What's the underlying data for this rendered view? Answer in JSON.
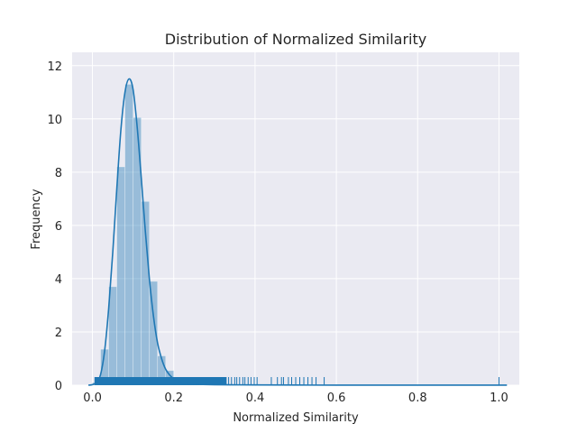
{
  "chart_data": {
    "type": "histogram",
    "title": "Distribution of Normalized Similarity",
    "xlabel": "Normalized Similarity",
    "ylabel": "Frequency",
    "xlim": [
      -0.05,
      1.05
    ],
    "ylim": [
      0,
      12.5
    ],
    "x_ticks": [
      0.0,
      0.2,
      0.4,
      0.6,
      0.8,
      1.0
    ],
    "x_tick_labels": [
      "0.0",
      "0.2",
      "0.4",
      "0.6",
      "0.8",
      "1.0"
    ],
    "y_ticks": [
      0,
      2,
      4,
      6,
      8,
      10,
      12
    ],
    "y_tick_labels": [
      "0",
      "2",
      "4",
      "6",
      "8",
      "10",
      "12"
    ],
    "grid": true,
    "colors": {
      "series": "#1f77b4",
      "background": "#eaeaf2",
      "grid": "#ffffff"
    },
    "bins": {
      "edges": [
        0.0,
        0.02,
        0.04,
        0.06,
        0.08,
        0.1,
        0.12,
        0.14,
        0.16,
        0.18,
        0.2,
        0.22,
        0.24
      ],
      "values": [
        0.1,
        1.35,
        3.7,
        8.2,
        11.3,
        10.05,
        6.9,
        3.9,
        1.1,
        0.55,
        0.2,
        0.1
      ]
    },
    "kde": {
      "x": [
        -0.01,
        0.0,
        0.01,
        0.02,
        0.03,
        0.04,
        0.05,
        0.06,
        0.07,
        0.08,
        0.09,
        0.1,
        0.11,
        0.12,
        0.13,
        0.14,
        0.15,
        0.16,
        0.17,
        0.18,
        0.19,
        0.2,
        0.21,
        0.22,
        0.23,
        0.25,
        0.3,
        0.4,
        0.5,
        0.6,
        0.8,
        1.0,
        1.01
      ],
      "y": [
        0.0,
        0.02,
        0.1,
        0.4,
        1.3,
        2.9,
        5.0,
        7.4,
        9.6,
        11.0,
        11.5,
        11.1,
        9.7,
        7.8,
        5.8,
        4.0,
        2.6,
        1.6,
        1.0,
        0.6,
        0.38,
        0.24,
        0.16,
        0.1,
        0.07,
        0.04,
        0.02,
        0.01,
        0.005,
        0.003,
        0.002,
        0.002,
        0.0
      ]
    },
    "rug": {
      "dense_range": [
        0.005,
        0.33
      ],
      "points": [
        0.335,
        0.342,
        0.35,
        0.355,
        0.362,
        0.37,
        0.375,
        0.383,
        0.39,
        0.398,
        0.405,
        0.44,
        0.455,
        0.465,
        0.47,
        0.482,
        0.49,
        0.5,
        0.51,
        0.52,
        0.53,
        0.54,
        0.55,
        0.57,
        1.0
      ]
    }
  }
}
